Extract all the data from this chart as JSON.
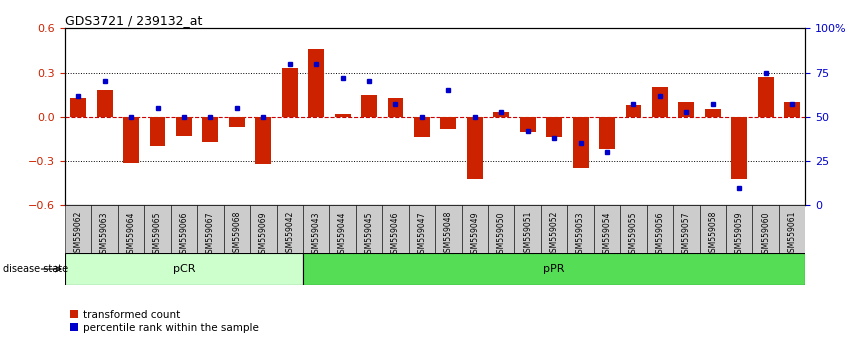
{
  "title": "GDS3721 / 239132_at",
  "samples": [
    "GSM559062",
    "GSM559063",
    "GSM559064",
    "GSM559065",
    "GSM559066",
    "GSM559067",
    "GSM559068",
    "GSM559069",
    "GSM559042",
    "GSM559043",
    "GSM559044",
    "GSM559045",
    "GSM559046",
    "GSM559047",
    "GSM559048",
    "GSM559049",
    "GSM559050",
    "GSM559051",
    "GSM559052",
    "GSM559053",
    "GSM559054",
    "GSM559055",
    "GSM559056",
    "GSM559057",
    "GSM559058",
    "GSM559059",
    "GSM559060",
    "GSM559061"
  ],
  "transformed_count": [
    0.13,
    0.18,
    -0.31,
    -0.2,
    -0.13,
    -0.17,
    -0.07,
    -0.32,
    0.33,
    0.46,
    0.02,
    0.15,
    0.13,
    -0.14,
    -0.08,
    -0.42,
    0.03,
    -0.1,
    -0.14,
    -0.35,
    -0.22,
    0.08,
    0.2,
    0.1,
    0.05,
    -0.42,
    0.27,
    0.1
  ],
  "percentile_rank": [
    62,
    70,
    50,
    55,
    50,
    50,
    55,
    50,
    80,
    80,
    72,
    70,
    57,
    50,
    65,
    50,
    53,
    42,
    38,
    35,
    30,
    57,
    62,
    53,
    57,
    10,
    75,
    57
  ],
  "pCR_count": 9,
  "pCR_label": "pCR",
  "pPR_label": "pPR",
  "bar_color": "#cc2200",
  "dot_color": "#0000cc",
  "zero_line_color": "#cc0000",
  "grid_line_color": "#000000",
  "ylim": [
    -0.6,
    0.6
  ],
  "yticks": [
    -0.6,
    -0.3,
    0.0,
    0.3,
    0.6
  ],
  "right_yticks": [
    0,
    25,
    50,
    75,
    100
  ],
  "right_ytick_labels": [
    "0",
    "25",
    "50",
    "75",
    "100%"
  ],
  "pCR_color": "#ccffcc",
  "pPR_color": "#55dd55",
  "tick_bg_color": "#cccccc",
  "legend_red_label": "transformed count",
  "legend_blue_label": "percentile rank within the sample"
}
